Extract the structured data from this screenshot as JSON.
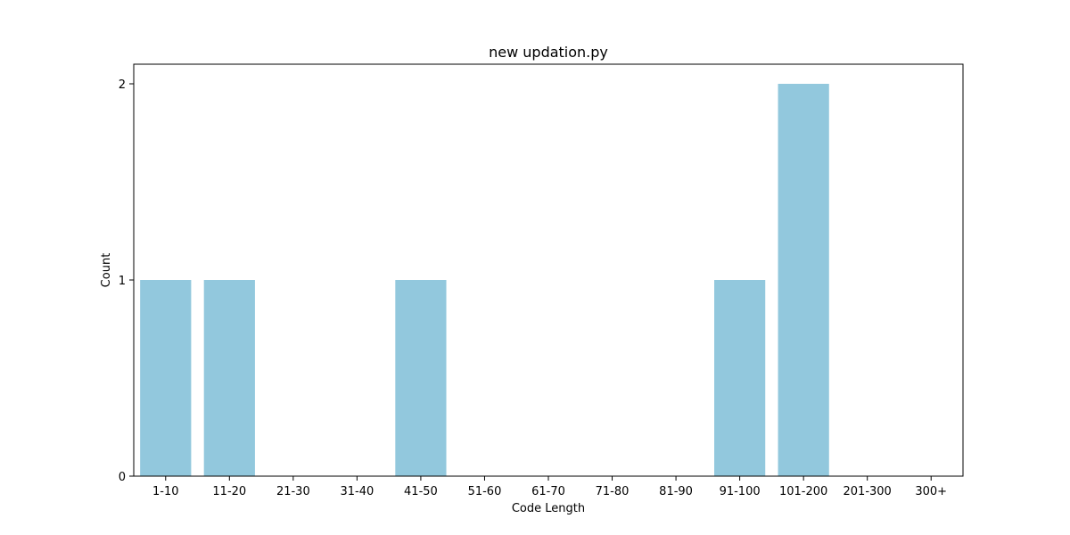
{
  "chart_data": {
    "type": "bar",
    "title": "new updation.py",
    "xlabel": "Code Length",
    "ylabel": "Count",
    "categories": [
      "1-10",
      "11-20",
      "21-30",
      "31-40",
      "41-50",
      "51-60",
      "61-70",
      "71-80",
      "81-90",
      "91-100",
      "101-200",
      "201-300",
      "300+"
    ],
    "values": [
      1,
      1,
      0,
      0,
      1,
      0,
      0,
      0,
      0,
      1,
      2,
      0,
      0
    ],
    "ylim": [
      0,
      2.1
    ],
    "yticks": [
      0,
      1,
      2
    ],
    "bar_color": "#92c8dd",
    "grid": false,
    "legend": "none"
  }
}
